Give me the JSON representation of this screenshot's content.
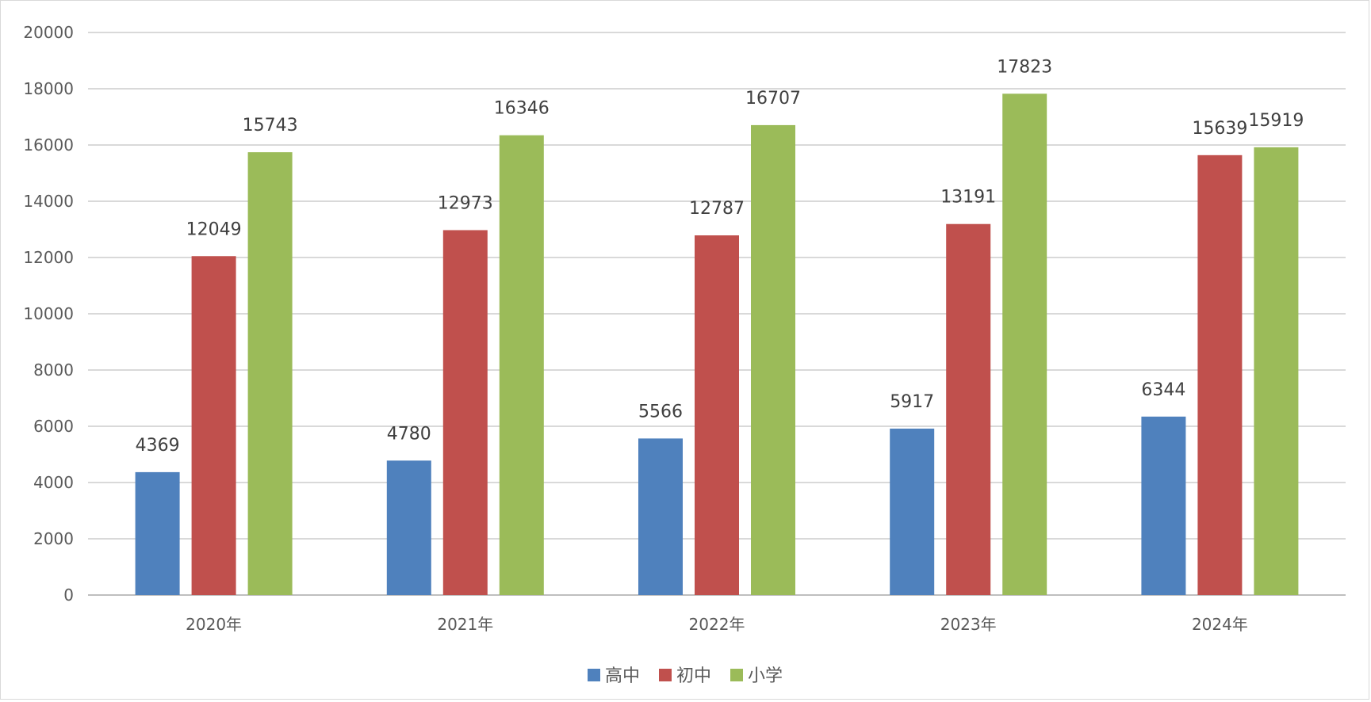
{
  "chart_data": {
    "type": "bar",
    "categories": [
      "2020年",
      "2021年",
      "2022年",
      "2023年",
      "2024年"
    ],
    "series": [
      {
        "name": "高中",
        "color": "#4F81BD",
        "values": [
          4369,
          4780,
          5566,
          5917,
          6344
        ]
      },
      {
        "name": "初中",
        "color": "#C0504D",
        "values": [
          12049,
          12973,
          12787,
          13191,
          15639
        ]
      },
      {
        "name": "小学",
        "color": "#9BBB59",
        "values": [
          15743,
          16346,
          16707,
          17823,
          15919
        ]
      }
    ],
    "ylim": [
      0,
      20000
    ],
    "yticks": [
      "0",
      "2000",
      "4000",
      "6000",
      "8000",
      "10000",
      "12000",
      "14000",
      "16000",
      "18000",
      "20000"
    ],
    "grid": true,
    "legend_position": "bottom"
  }
}
